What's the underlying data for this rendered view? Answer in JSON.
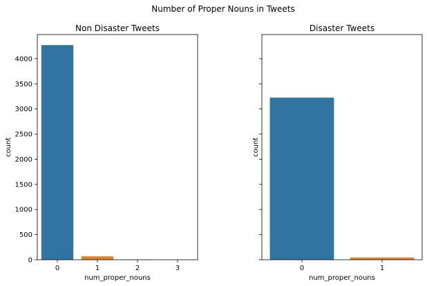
{
  "figure": {
    "suptitle": "Number of Proper Nouns in Tweets"
  },
  "colors": {
    "blue": "#3274a1",
    "orange": "#e1812c",
    "green": "#3a923a",
    "red": "#c03d3e"
  },
  "chart_data": [
    {
      "type": "bar",
      "title": "Non Disaster Tweets",
      "xlabel": "num_proper_nouns",
      "ylabel": "count",
      "categories": [
        "0",
        "1",
        "2",
        "3"
      ],
      "values": [
        4270,
        68,
        3,
        1
      ],
      "bar_colors": [
        "#3274a1",
        "#e1812c",
        "#3a923a",
        "#c03d3e"
      ],
      "ylim": [
        0,
        4480
      ],
      "yticks": [
        0,
        500,
        1000,
        1500,
        2000,
        2500,
        3000,
        3500,
        4000
      ],
      "ytick_labels_visible": true
    },
    {
      "type": "bar",
      "title": "Disaster Tweets",
      "xlabel": "num_proper_nouns",
      "ylabel": "count",
      "categories": [
        "0",
        "1"
      ],
      "values": [
        3225,
        45
      ],
      "bar_colors": [
        "#3274a1",
        "#e1812c"
      ],
      "ylim": [
        0,
        4480
      ],
      "yticks": [
        0,
        500,
        1000,
        1500,
        2000,
        2500,
        3000,
        3500,
        4000
      ],
      "ytick_labels_visible": false
    }
  ]
}
